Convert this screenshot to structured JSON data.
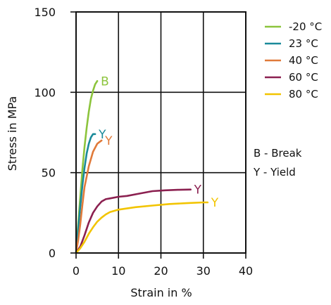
{
  "chart_data": {
    "type": "line",
    "title": "",
    "xlabel": "Strain in %",
    "ylabel": "Stress in MPa",
    "xlim": [
      0,
      40
    ],
    "ylim": [
      0,
      150
    ],
    "xticks": [
      0,
      10,
      20,
      30,
      40
    ],
    "yticks": [
      0,
      50,
      100,
      150
    ],
    "grid": true,
    "legend_position": "right",
    "series": [
      {
        "name": "-20 °C",
        "color": "#8cc43c",
        "end_label": "B",
        "points": [
          [
            0,
            0
          ],
          [
            0.5,
            18
          ],
          [
            1,
            35
          ],
          [
            1.5,
            52
          ],
          [
            2,
            66
          ],
          [
            2.5,
            78
          ],
          [
            3,
            88
          ],
          [
            3.5,
            96
          ],
          [
            4,
            101
          ],
          [
            4.5,
            105
          ],
          [
            5,
            107
          ]
        ]
      },
      {
        "name": "23 °C",
        "color": "#1a8a9a",
        "end_label": "Y",
        "points": [
          [
            0,
            0
          ],
          [
            0.5,
            15
          ],
          [
            1,
            29
          ],
          [
            1.5,
            42
          ],
          [
            2,
            53
          ],
          [
            2.5,
            62
          ],
          [
            3,
            68
          ],
          [
            3.5,
            72
          ],
          [
            4,
            74
          ],
          [
            4.5,
            74
          ]
        ]
      },
      {
        "name": "40 °C",
        "color": "#e07a3a",
        "end_label": "Y",
        "points": [
          [
            0,
            0
          ],
          [
            0.5,
            8
          ],
          [
            1,
            18
          ],
          [
            1.5,
            30
          ],
          [
            2,
            41
          ],
          [
            3,
            54
          ],
          [
            4,
            63
          ],
          [
            5,
            68
          ],
          [
            5.5,
            69
          ],
          [
            6,
            70
          ]
        ]
      },
      {
        "name": "60 °C",
        "color": "#8b2050",
        "end_label": "Y",
        "points": [
          [
            0,
            0
          ],
          [
            1,
            4
          ],
          [
            2,
            11
          ],
          [
            3,
            19
          ],
          [
            4,
            25
          ],
          [
            5,
            29
          ],
          [
            6,
            32
          ],
          [
            7,
            33.5
          ],
          [
            8,
            34
          ],
          [
            10,
            35
          ],
          [
            12,
            35.5
          ],
          [
            15,
            37
          ],
          [
            18,
            38.5
          ],
          [
            21,
            39
          ],
          [
            24,
            39.3
          ],
          [
            27,
            39.5
          ]
        ]
      },
      {
        "name": "80 °C",
        "color": "#f2c400",
        "end_label": "Y",
        "points": [
          [
            0,
            0
          ],
          [
            1,
            3
          ],
          [
            2,
            7
          ],
          [
            3,
            12
          ],
          [
            4,
            16
          ],
          [
            5,
            19.5
          ],
          [
            6,
            22
          ],
          [
            7,
            24
          ],
          [
            8,
            25.5
          ],
          [
            10,
            27
          ],
          [
            14,
            28.5
          ],
          [
            18,
            29.5
          ],
          [
            22,
            30.5
          ],
          [
            26,
            31
          ],
          [
            30,
            31.5
          ],
          [
            31,
            31.5
          ]
        ]
      }
    ],
    "notes": [
      "B - Break",
      "Y - Yield"
    ]
  }
}
